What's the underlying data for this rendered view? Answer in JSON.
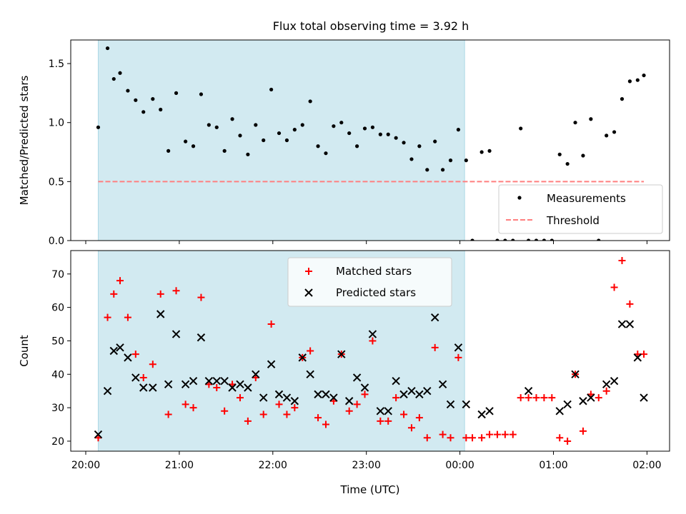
{
  "title": "Flux total observing time = 3.92 h",
  "colors": {
    "shade": "#add8e6",
    "measure": "#000000",
    "threshold": "#ff7f7f",
    "matched": "#ff0000",
    "predicted": "#000000"
  },
  "chart_data": [
    {
      "type": "scatter",
      "ylabel": "Matched/Predicted stars",
      "xlabel": "",
      "ylim": [
        0,
        1.7
      ],
      "yticks": [
        "0.0",
        "0.5",
        "1.0",
        "1.5"
      ],
      "grid": false,
      "legend": {
        "placement": "lower-right",
        "entries": [
          "Measurements",
          "Threshold"
        ]
      },
      "shaded_interval": [
        "20:08",
        "00:03"
      ],
      "threshold": {
        "name": "Threshold",
        "value": 0.5,
        "x_range": [
          "20:08",
          "01:58"
        ]
      },
      "series": [
        {
          "name": "Measurements",
          "marker": "dot",
          "x": [
            "20:08",
            "20:14",
            "20:18",
            "20:22",
            "20:27",
            "20:32",
            "20:37",
            "20:43",
            "20:48",
            "20:53",
            "20:58",
            "21:04",
            "21:09",
            "21:14",
            "21:19",
            "21:24",
            "21:29",
            "21:34",
            "21:39",
            "21:44",
            "21:49",
            "21:54",
            "21:59",
            "22:04",
            "22:09",
            "22:14",
            "22:19",
            "22:24",
            "22:29",
            "22:34",
            "22:39",
            "22:44",
            "22:49",
            "22:54",
            "22:59",
            "23:04",
            "23:09",
            "23:14",
            "23:19",
            "23:24",
            "23:29",
            "23:34",
            "23:39",
            "23:44",
            "23:49",
            "23:54",
            "23:59",
            "00:04",
            "00:08",
            "00:14",
            "00:19",
            "00:24",
            "00:29",
            "00:34",
            "00:39",
            "00:44",
            "00:49",
            "00:54",
            "00:59",
            "01:04",
            "01:09",
            "01:14",
            "01:19",
            "01:24",
            "01:29",
            "01:34",
            "01:39",
            "01:44",
            "01:49",
            "01:54",
            "01:58"
          ],
          "y": [
            0.96,
            1.63,
            1.37,
            1.42,
            1.27,
            1.19,
            1.09,
            1.2,
            1.11,
            0.76,
            1.25,
            0.84,
            0.8,
            1.24,
            0.98,
            0.96,
            0.76,
            1.03,
            0.89,
            0.73,
            0.98,
            0.85,
            1.28,
            0.91,
            0.85,
            0.94,
            0.98,
            1.18,
            0.8,
            0.74,
            0.97,
            1.0,
            0.91,
            0.8,
            0.95,
            0.96,
            0.9,
            0.9,
            0.87,
            0.83,
            0.69,
            0.8,
            0.6,
            0.84,
            0.6,
            0.68,
            0.94,
            0.68,
            0.0,
            0.75,
            0.76,
            0.0,
            0.0,
            0.0,
            0.95,
            0.0,
            0.0,
            0.0,
            0.0,
            0.73,
            0.65,
            1.0,
            0.72,
            1.03,
            0.0,
            0.89,
            0.92,
            1.2,
            1.35,
            1.36,
            1.4
          ]
        }
      ]
    },
    {
      "type": "scatter",
      "xlabel": "Time (UTC)",
      "ylabel": "Count",
      "ylim": [
        17,
        77
      ],
      "yticks": [
        "20",
        "30",
        "40",
        "50",
        "60",
        "70"
      ],
      "xticks": [
        "20:00",
        "21:00",
        "22:00",
        "23:00",
        "00:00",
        "01:00",
        "02:00"
      ],
      "grid": false,
      "legend": {
        "placement": "upper-center",
        "entries": [
          "Matched stars",
          "Predicted stars"
        ]
      },
      "shaded_interval": [
        "20:08",
        "00:03"
      ],
      "series": [
        {
          "name": "Matched stars",
          "marker": "plus",
          "x": [
            "20:08",
            "20:14",
            "20:18",
            "20:22",
            "20:27",
            "20:32",
            "20:37",
            "20:43",
            "20:48",
            "20:53",
            "20:58",
            "21:04",
            "21:09",
            "21:14",
            "21:19",
            "21:24",
            "21:29",
            "21:34",
            "21:39",
            "21:44",
            "21:49",
            "21:54",
            "21:59",
            "22:04",
            "22:09",
            "22:14",
            "22:19",
            "22:24",
            "22:29",
            "22:34",
            "22:39",
            "22:44",
            "22:49",
            "22:54",
            "22:59",
            "23:04",
            "23:09",
            "23:14",
            "23:19",
            "23:24",
            "23:29",
            "23:34",
            "23:39",
            "23:44",
            "23:49",
            "23:54",
            "23:59",
            "00:04",
            "00:08",
            "00:14",
            "00:19",
            "00:24",
            "00:29",
            "00:34",
            "00:39",
            "00:44",
            "00:49",
            "00:54",
            "00:59",
            "01:04",
            "01:09",
            "01:14",
            "01:19",
            "01:24",
            "01:29",
            "01:34",
            "01:39",
            "01:44",
            "01:49",
            "01:54",
            "01:58"
          ],
          "y": [
            21,
            57,
            64,
            68,
            57,
            46,
            39,
            43,
            64,
            28,
            65,
            31,
            30,
            63,
            37,
            36,
            29,
            37,
            33,
            26,
            39,
            28,
            55,
            31,
            28,
            30,
            45,
            47,
            27,
            25,
            32,
            46,
            29,
            31,
            34,
            50,
            26,
            26,
            33,
            28,
            24,
            27,
            21,
            48,
            22,
            21,
            45,
            21,
            21,
            21,
            22,
            22,
            22,
            22,
            33,
            33,
            33,
            33,
            33,
            21,
            20,
            40,
            23,
            34,
            33,
            35,
            66,
            74,
            61,
            46,
            46
          ]
        },
        {
          "name": "Predicted stars",
          "marker": "x",
          "x": [
            "20:08",
            "20:14",
            "20:18",
            "20:22",
            "20:27",
            "20:32",
            "20:37",
            "20:43",
            "20:48",
            "20:53",
            "20:58",
            "21:04",
            "21:09",
            "21:14",
            "21:19",
            "21:24",
            "21:29",
            "21:34",
            "21:39",
            "21:44",
            "21:49",
            "21:54",
            "21:59",
            "22:04",
            "22:09",
            "22:14",
            "22:19",
            "22:24",
            "22:29",
            "22:34",
            "22:39",
            "22:44",
            "22:49",
            "22:54",
            "22:59",
            "23:04",
            "23:09",
            "23:14",
            "23:19",
            "23:24",
            "23:29",
            "23:34",
            "23:39",
            "23:44",
            "23:49",
            "23:54",
            "23:59",
            "00:04",
            "00:14",
            "00:19",
            "00:44",
            "01:04",
            "01:09",
            "01:14",
            "01:19",
            "01:24",
            "01:34",
            "01:39",
            "01:44",
            "01:49",
            "01:54",
            "01:58"
          ],
          "y": [
            22,
            35,
            47,
            48,
            45,
            39,
            36,
            36,
            58,
            37,
            52,
            37,
            38,
            51,
            38,
            38,
            38,
            36,
            37,
            36,
            40,
            33,
            43,
            34,
            33,
            32,
            45,
            40,
            34,
            34,
            33,
            46,
            32,
            39,
            36,
            52,
            29,
            29,
            38,
            34,
            35,
            34,
            35,
            57,
            37,
            31,
            48,
            31,
            28,
            29,
            35,
            29,
            31,
            40,
            32,
            33,
            37,
            38,
            55,
            55,
            45,
            33
          ]
        }
      ]
    }
  ]
}
